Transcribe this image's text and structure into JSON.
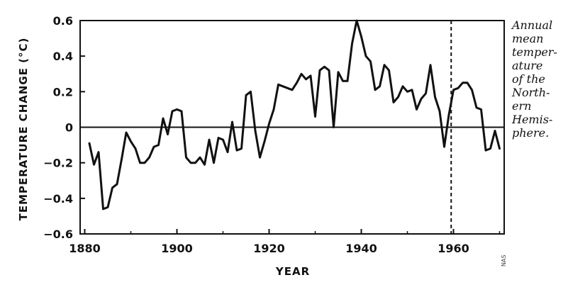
{
  "chart_data": {
    "type": "line",
    "title": "",
    "xlabel": "YEAR",
    "ylabel": "TEMPERATURE CHANGE (°C)",
    "xlim": [
      1879,
      1971
    ],
    "ylim": [
      -0.6,
      0.6
    ],
    "x_ticks": [
      1880,
      1900,
      1920,
      1940,
      1960
    ],
    "y_ticks": [
      0.6,
      0.4,
      0.2,
      0,
      -0.2,
      -0.4,
      -0.6
    ],
    "y_tick_labels": [
      "0.6",
      "0.4",
      "0.2",
      "0",
      "−0.2",
      "−0.4",
      "−0.6"
    ],
    "reference_line_y": 0,
    "vertical_marker": {
      "x": 1959.5,
      "style": "dashed"
    },
    "grid": false,
    "series": [
      {
        "color": "#111111",
        "x": [
          1881,
          1882,
          1883,
          1884,
          1885,
          1886,
          1887,
          1888,
          1889,
          1890,
          1891,
          1892,
          1893,
          1894,
          1895,
          1896,
          1897,
          1898,
          1899,
          1900,
          1901,
          1902,
          1903,
          1904,
          1905,
          1906,
          1907,
          1908,
          1909,
          1910,
          1911,
          1912,
          1913,
          1914,
          1915,
          1916,
          1917,
          1918,
          1919,
          1920,
          1921,
          1922,
          1923,
          1924,
          1925,
          1926,
          1927,
          1928,
          1929,
          1930,
          1931,
          1932,
          1933,
          1934,
          1935,
          1936,
          1937,
          1938,
          1939,
          1940,
          1941,
          1942,
          1943,
          1944,
          1945,
          1946,
          1947,
          1948,
          1949,
          1950,
          1951,
          1952,
          1953,
          1954,
          1955,
          1956,
          1957,
          1958,
          1959,
          1960,
          1961,
          1962,
          1963,
          1964,
          1965,
          1966,
          1967,
          1968,
          1969,
          1970
        ],
        "y": [
          -0.09,
          -0.21,
          -0.14,
          -0.46,
          -0.45,
          -0.34,
          -0.32,
          -0.18,
          -0.03,
          -0.08,
          -0.12,
          -0.2,
          -0.2,
          -0.17,
          -0.11,
          -0.1,
          0.05,
          -0.04,
          0.09,
          0.1,
          0.09,
          -0.17,
          -0.2,
          -0.2,
          -0.17,
          -0.21,
          -0.07,
          -0.2,
          -0.06,
          -0.07,
          -0.14,
          0.03,
          -0.13,
          -0.12,
          0.18,
          0.2,
          -0.02,
          -0.17,
          -0.08,
          0.02,
          0.1,
          0.24,
          0.23,
          0.22,
          0.21,
          0.25,
          0.3,
          0.27,
          0.29,
          0.06,
          0.32,
          0.34,
          0.32,
          0.0,
          0.31,
          0.26,
          0.26,
          0.47,
          0.6,
          0.51,
          0.4,
          0.37,
          0.21,
          0.23,
          0.35,
          0.32,
          0.14,
          0.17,
          0.23,
          0.2,
          0.21,
          0.1,
          0.16,
          0.19,
          0.35,
          0.17,
          0.09,
          -0.11,
          0.07,
          0.21,
          0.22,
          0.25,
          0.25,
          0.21,
          0.11,
          0.1,
          -0.13,
          -0.12,
          -0.02,
          -0.12
        ]
      }
    ]
  },
  "caption": {
    "lines": [
      "Annual",
      "mean",
      "temper-",
      "ature",
      "of the",
      "North-",
      "ern",
      "Hemis-",
      "phere."
    ]
  },
  "credit": "NAS"
}
